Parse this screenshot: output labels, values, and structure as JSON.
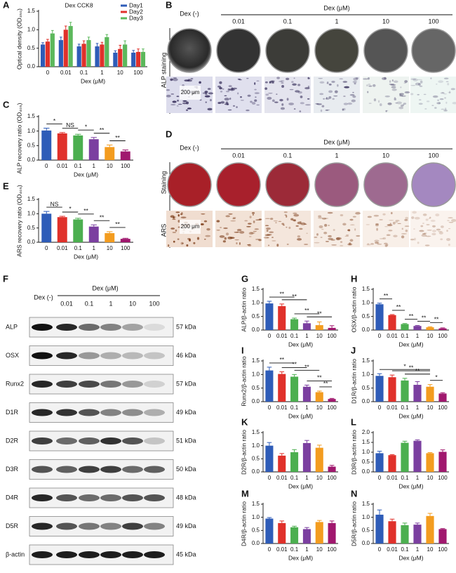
{
  "panel_labels": [
    "A",
    "B",
    "C",
    "D",
    "E",
    "F",
    "G",
    "H",
    "I",
    "J",
    "K",
    "L",
    "M",
    "N"
  ],
  "alp_staining": {
    "control": "Dex (-)",
    "group": "Dex (μM)",
    "doses": [
      "0.01",
      "0.1",
      "1",
      "10",
      "100"
    ],
    "row_label": "ALP staining",
    "scale_bar": "200 μm"
  },
  "ars_staining": {
    "control": "Dex (-)",
    "group": "Dex (μM)",
    "doses": [
      "0.01",
      "0.1",
      "1",
      "10",
      "100"
    ],
    "row_labels": [
      "Staining",
      "ARS"
    ],
    "scale_bar": "200 μm"
  },
  "western_blot": {
    "control": "Dex (-)",
    "group": "Dex (μM)",
    "doses": [
      "0.01",
      "0.1",
      "1",
      "10",
      "100"
    ],
    "rows": [
      {
        "protein": "ALP",
        "size": "57 kDa"
      },
      {
        "protein": "OSX",
        "size": "46 kDa"
      },
      {
        "protein": "Runx2",
        "size": "57 kDa"
      },
      {
        "protein": "D1R",
        "size": "49 kDa"
      },
      {
        "protein": "D2R",
        "size": "51 kDa"
      },
      {
        "protein": "D3R",
        "size": "50 kDa"
      },
      {
        "protein": "D4R",
        "size": "48 kDa"
      },
      {
        "protein": "D5R",
        "size": "49 kDa"
      },
      {
        "protein": "β-actin",
        "size": "45 kDa"
      }
    ]
  },
  "chart_data": [
    {
      "type": "bar",
      "title": "Dex CCK8",
      "y_label": "Optical density (OD₄₅₀)",
      "x_label": "Dex (μM)",
      "categories": [
        "0",
        "0.01",
        "0.1",
        "1",
        "10",
        "100"
      ],
      "series": [
        {
          "name": "Day1",
          "color": "#2e5cb8",
          "values": [
            0.6,
            0.72,
            0.55,
            0.55,
            0.38,
            0.38
          ],
          "errors": [
            0.05,
            0.08,
            0.06,
            0.08,
            0.05,
            0.06
          ]
        },
        {
          "name": "Day2",
          "color": "#e0312b",
          "values": [
            0.68,
            1.0,
            0.62,
            0.6,
            0.48,
            0.4
          ],
          "errors": [
            0.06,
            0.1,
            0.08,
            0.06,
            0.1,
            0.08
          ]
        },
        {
          "name": "Day3",
          "color": "#5cb85c",
          "values": [
            0.9,
            1.1,
            0.72,
            0.8,
            0.6,
            0.4
          ],
          "errors": [
            0.08,
            0.1,
            0.08,
            0.07,
            0.1,
            0.08
          ]
        }
      ],
      "ylim": [
        0,
        1.5
      ],
      "yticks": [
        {
          "value": 0,
          "label": "0.0"
        },
        0.5,
        {
          "value": 1,
          "label": "1.0"
        },
        1.5
      ],
      "legend": "upper right"
    },
    {
      "type": "bar",
      "y_label": "ALP recovery ratio (OD₄₀₅)",
      "x_label": "Dex (μM)",
      "categories": [
        "0",
        "0.01",
        "0.1",
        "1",
        "10",
        "100"
      ],
      "values": [
        1.02,
        0.92,
        0.85,
        0.72,
        0.45,
        0.3
      ],
      "errors": [
        0.08,
        0.03,
        0.04,
        0.06,
        0.07,
        0.05
      ],
      "colors": [
        "#2e5cb8",
        "#e0312b",
        "#4caf50",
        "#7b3fa0",
        "#f39c1f",
        "#a0186e"
      ],
      "ylim": [
        0,
        1.5
      ],
      "yticks": [
        {
          "value": 0,
          "label": "0.0"
        },
        0.5,
        {
          "value": 1,
          "label": "1.0"
        },
        1.5
      ],
      "significance": [
        {
          "text": "*",
          "categories": [
            "0",
            "0.01"
          ]
        },
        {
          "text": "NS",
          "categories": [
            "0.01",
            "0.1"
          ]
        },
        {
          "text": "*",
          "categories": [
            "0.1",
            "1"
          ]
        },
        {
          "text": "**",
          "categories": [
            "1",
            "10"
          ]
        },
        {
          "text": "**",
          "categories": [
            "10",
            "100"
          ]
        }
      ]
    },
    {
      "type": "bar",
      "y_label": "ARS recovery ratio (OD₄₀₅)",
      "x_label": "Dex (μM)",
      "categories": [
        "0",
        "0.01",
        "0.1",
        "1",
        "10",
        "100"
      ],
      "values": [
        1.0,
        0.88,
        0.8,
        0.55,
        0.32,
        0.12
      ],
      "errors": [
        0.08,
        0.03,
        0.04,
        0.06,
        0.05,
        0.02
      ],
      "colors": [
        "#2e5cb8",
        "#e0312b",
        "#4caf50",
        "#7b3fa0",
        "#f39c1f",
        "#a0186e"
      ],
      "ylim": [
        0,
        1.5
      ],
      "yticks": [
        {
          "value": 0,
          "label": "0.0"
        },
        0.5,
        {
          "value": 1,
          "label": "1.0"
        },
        1.5
      ],
      "significance": [
        {
          "text": "NS",
          "categories": [
            "0",
            "0.01"
          ]
        },
        {
          "text": "*",
          "categories": [
            "0.01",
            "0.1"
          ]
        },
        {
          "text": "**",
          "categories": [
            "0.1",
            "1"
          ]
        },
        {
          "text": "**",
          "categories": [
            "1",
            "10"
          ]
        },
        {
          "text": "**",
          "categories": [
            "10",
            "100"
          ]
        }
      ]
    },
    {
      "type": "bar",
      "y_label": "ALP/β-actin ratio",
      "x_label": "Dex (μM)",
      "categories": [
        "0",
        "0.01",
        "0.1",
        "1",
        "10",
        "100"
      ],
      "values": [
        0.98,
        0.88,
        0.4,
        0.25,
        0.18,
        0.08
      ],
      "errors": [
        0.08,
        0.08,
        0.04,
        0.08,
        0.12,
        0.08
      ],
      "colors": [
        "#2e5cb8",
        "#e0312b",
        "#4caf50",
        "#7b3fa0",
        "#f39c1f",
        "#a0186e"
      ],
      "ylim": [
        0,
        1.5
      ],
      "yticks": [
        {
          "value": 0,
          "label": "0.0"
        },
        0.5,
        {
          "value": 1,
          "label": "1.0"
        },
        1.5
      ],
      "significance": [
        {
          "text": "**",
          "categories": [
            "0",
            "0.1"
          ]
        },
        {
          "text": "**",
          "categories": [
            "0.01",
            "1"
          ]
        },
        {
          "text": "**",
          "categories": [
            "0.1",
            "10"
          ]
        },
        {
          "text": "**",
          "categories": [
            "1",
            "100"
          ]
        }
      ]
    },
    {
      "type": "bar",
      "y_label": "OSX/β-actin ratio",
      "x_label": "Dex (μM)",
      "categories": [
        "0",
        "0.01",
        "0.1",
        "1",
        "10",
        "100"
      ],
      "values": [
        0.95,
        0.55,
        0.22,
        0.15,
        0.1,
        0.06
      ],
      "errors": [
        0.04,
        0.02,
        0.02,
        0.02,
        0.02,
        0.02
      ],
      "colors": [
        "#2e5cb8",
        "#e0312b",
        "#4caf50",
        "#7b3fa0",
        "#f39c1f",
        "#a0186e"
      ],
      "ylim": [
        0,
        1.5
      ],
      "yticks": [
        {
          "value": 0,
          "label": "0.0"
        },
        0.5,
        {
          "value": 1,
          "label": "1.0"
        },
        1.5
      ],
      "significance": [
        {
          "text": "**",
          "categories": [
            "0",
            "0.01"
          ]
        },
        {
          "text": "**",
          "categories": [
            "0.01",
            "0.1"
          ]
        },
        {
          "text": "**",
          "categories": [
            "0.1",
            "1"
          ]
        },
        {
          "text": "**",
          "categories": [
            "1",
            "10"
          ]
        },
        {
          "text": "**",
          "categories": [
            "10",
            "100"
          ]
        }
      ]
    },
    {
      "type": "bar",
      "y_label": "Runx2/β-actin ratio",
      "x_label": "Dex (μM)",
      "categories": [
        "0",
        "0.01",
        "0.1",
        "1",
        "10",
        "100"
      ],
      "values": [
        1.15,
        1.02,
        0.92,
        0.55,
        0.35,
        0.1
      ],
      "errors": [
        0.12,
        0.08,
        0.08,
        0.06,
        0.04,
        0.02
      ],
      "colors": [
        "#2e5cb8",
        "#e0312b",
        "#4caf50",
        "#7b3fa0",
        "#f39c1f",
        "#a0186e"
      ],
      "ylim": [
        0,
        1.5
      ],
      "yticks": [
        {
          "value": 0,
          "label": "0.0"
        },
        0.5,
        {
          "value": 1,
          "label": "1.0"
        },
        1.5
      ],
      "significance": [
        {
          "text": "**",
          "categories": [
            "0",
            "0.1"
          ]
        },
        {
          "text": "**",
          "categories": [
            "0.01",
            "1"
          ]
        },
        {
          "text": "**",
          "categories": [
            "0.1",
            "10"
          ]
        },
        {
          "text": "**",
          "categories": [
            "1",
            "100"
          ]
        },
        {
          "text": "**",
          "categories": [
            "10",
            "100"
          ]
        }
      ]
    },
    {
      "type": "bar",
      "y_label": "D1R/β-actin ratio",
      "x_label": "Dex (μM)",
      "categories": [
        "0",
        "0.01",
        "0.1",
        "1",
        "10",
        "100"
      ],
      "values": [
        0.95,
        0.9,
        0.78,
        0.62,
        0.55,
        0.3
      ],
      "errors": [
        0.08,
        0.08,
        0.08,
        0.12,
        0.08,
        0.03
      ],
      "colors": [
        "#2e5cb8",
        "#e0312b",
        "#4caf50",
        "#7b3fa0",
        "#f39c1f",
        "#a0186e"
      ],
      "ylim": [
        0,
        1.5
      ],
      "yticks": [
        {
          "value": 0,
          "label": "0.0"
        },
        0.5,
        {
          "value": 1,
          "label": "1.0"
        },
        1.5
      ],
      "significance": [
        {
          "text": "*",
          "categories": [
            "0",
            "10"
          ]
        },
        {
          "text": "**",
          "categories": [
            "0.01",
            "10"
          ]
        },
        {
          "text": "**",
          "categories": [
            "0.1",
            "10"
          ]
        },
        {
          "text": "*",
          "categories": [
            "10",
            "100"
          ]
        }
      ]
    },
    {
      "type": "bar",
      "y_label": "D2R/β-actin ratio",
      "x_label": "Dex (μM)",
      "categories": [
        "0",
        "0.01",
        "0.1",
        "1",
        "10",
        "100"
      ],
      "values": [
        1.0,
        0.62,
        0.75,
        1.1,
        0.92,
        0.2
      ],
      "errors": [
        0.12,
        0.08,
        0.1,
        0.1,
        0.1,
        0.05
      ],
      "colors": [
        "#2e5cb8",
        "#e0312b",
        "#4caf50",
        "#7b3fa0",
        "#f39c1f",
        "#a0186e"
      ],
      "ylim": [
        0,
        1.5
      ],
      "yticks": [
        {
          "value": 0,
          "label": "0.0"
        },
        0.5,
        {
          "value": 1,
          "label": "1.0"
        },
        1.5
      ]
    },
    {
      "type": "bar",
      "y_label": "D3R/β-actin ratio",
      "x_label": "Dex (μM)",
      "categories": [
        "0",
        "0.01",
        "0.1",
        "1",
        "10",
        "100"
      ],
      "values": [
        0.95,
        0.85,
        1.48,
        1.58,
        0.95,
        1.02
      ],
      "errors": [
        0.1,
        0.03,
        0.08,
        0.05,
        0.03,
        0.1
      ],
      "colors": [
        "#2e5cb8",
        "#e0312b",
        "#4caf50",
        "#7b3fa0",
        "#f39c1f",
        "#a0186e"
      ],
      "ylim": [
        0,
        2
      ],
      "yticks": [
        {
          "value": 0,
          "label": "0.0"
        },
        0.5,
        {
          "value": 1,
          "label": "1.0"
        },
        1.5,
        {
          "value": 2,
          "label": "2.0"
        }
      ]
    },
    {
      "type": "bar",
      "y_label": "D4R/β-actin ratio",
      "x_label": "Dex (μM)",
      "categories": [
        "0",
        "0.01",
        "0.1",
        "1",
        "10",
        "100"
      ],
      "values": [
        0.95,
        0.78,
        0.62,
        0.55,
        0.82,
        0.78
      ],
      "errors": [
        0.04,
        0.08,
        0.04,
        0.06,
        0.06,
        0.08
      ],
      "colors": [
        "#2e5cb8",
        "#e0312b",
        "#4caf50",
        "#7b3fa0",
        "#f39c1f",
        "#a0186e"
      ],
      "ylim": [
        0,
        1.5
      ],
      "yticks": [
        {
          "value": 0,
          "label": "0.0"
        },
        0.5,
        {
          "value": 1,
          "label": "1.0"
        },
        1.5
      ]
    },
    {
      "type": "bar",
      "y_label": "D5R/β-actin ratio",
      "x_label": "Dex (μM)",
      "categories": [
        "0",
        "0.01",
        "0.1",
        "1",
        "10",
        "100"
      ],
      "values": [
        1.1,
        0.85,
        0.7,
        0.72,
        1.05,
        0.55
      ],
      "errors": [
        0.18,
        0.08,
        0.08,
        0.06,
        0.1,
        0.02
      ],
      "colors": [
        "#2e5cb8",
        "#e0312b",
        "#4caf50",
        "#7b3fa0",
        "#f39c1f",
        "#a0186e"
      ],
      "ylim": [
        0,
        1.5
      ],
      "yticks": [
        {
          "value": 0,
          "label": "0.0"
        },
        0.5,
        {
          "value": 1,
          "label": "1.0"
        },
        1.5
      ]
    }
  ]
}
